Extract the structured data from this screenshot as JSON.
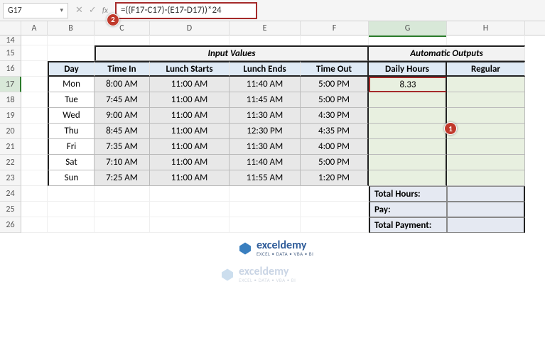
{
  "namebox": {
    "value": "G17"
  },
  "formula": {
    "value": "=((F17-C17)-(E17-D17))*24"
  },
  "markers": {
    "m1": "1",
    "m2": "2"
  },
  "columns": [
    "",
    "A",
    "B",
    "C",
    "D",
    "E",
    "F",
    "G",
    "H"
  ],
  "rows": [
    "14",
    "15",
    "16",
    "17",
    "18",
    "19",
    "20",
    "21",
    "22",
    "23",
    "24",
    "25",
    "26"
  ],
  "section_headers": {
    "input": "Input Values",
    "output": "Automatic Outputs"
  },
  "table_cols": {
    "day": "Day",
    "in": "Time In",
    "ls": "Lunch Starts",
    "le": "Lunch Ends",
    "out": "Time Out",
    "dh": "Daily Hours",
    "reg": "Regular"
  },
  "data": [
    {
      "day": "Mon",
      "in": "8:00 AM",
      "ls": "11:00 AM",
      "le": "11:40 AM",
      "out": "5:00 PM",
      "dh": "8.33"
    },
    {
      "day": "Tue",
      "in": "7:45 AM",
      "ls": "11:00 AM",
      "le": "11:45 AM",
      "out": "5:00 PM",
      "dh": ""
    },
    {
      "day": "Wed",
      "in": "9:00 AM",
      "ls": "11:00 AM",
      "le": "11:30 AM",
      "out": "4:30 PM",
      "dh": ""
    },
    {
      "day": "Thu",
      "in": "8:45 AM",
      "ls": "11:00 AM",
      "le": "12:30 PM",
      "out": "4:35 PM",
      "dh": ""
    },
    {
      "day": "Fri",
      "in": "7:35 AM",
      "ls": "11:00 AM",
      "le": "11:30 AM",
      "out": "4:00 PM",
      "dh": ""
    },
    {
      "day": "Sat",
      "in": "7:10 AM",
      "ls": "11:00 AM",
      "le": "11:40 AM",
      "out": "5:00 PM",
      "dh": ""
    },
    {
      "day": "Sun",
      "in": "7:25 AM",
      "ls": "11:00 AM",
      "le": "11:55 AM",
      "out": "1:20 PM",
      "dh": ""
    }
  ],
  "totals": {
    "hours": "Total Hours:",
    "pay": "Pay:",
    "payment": "Total Payment:"
  },
  "logo": {
    "main": "exceldemy",
    "sub": "EXCEL • DATA • VBA • BI"
  },
  "colors": {
    "accent_red": "#a52a2a",
    "marker_bg": "#c0392b",
    "header_blue": "#dfeaf5",
    "input_gray": "#e8e8e8",
    "output_green": "#e8f0e0",
    "totals_bg": "#e5e9f2"
  }
}
